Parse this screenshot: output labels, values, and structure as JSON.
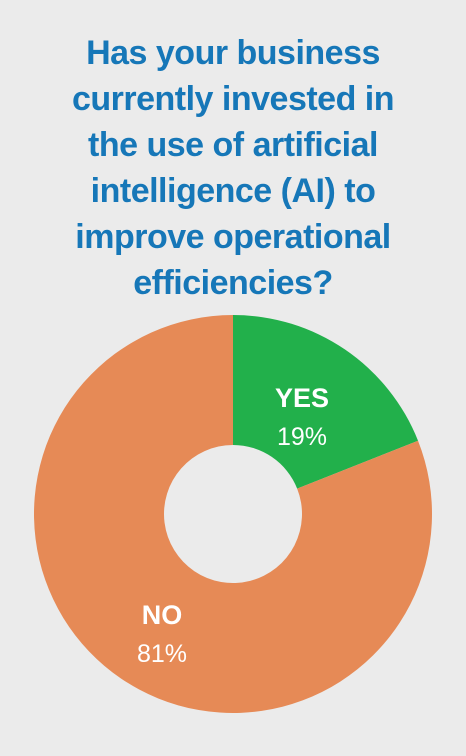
{
  "title_lines": [
    "Has your business",
    "currently invested in",
    "the use of artificial",
    "intelligence (AI) to",
    "improve operational",
    "efficiencies?"
  ],
  "chart_data": {
    "type": "pie",
    "title": "Has your business currently invested in the use of artificial intelligence (AI) to improve operational efficiencies?",
    "donut": true,
    "slices": [
      {
        "label": "YES",
        "value": 19,
        "value_label": "19%",
        "color": "#22b04b"
      },
      {
        "label": "NO",
        "value": 81,
        "value_label": "81%",
        "color": "#e68a56"
      }
    ]
  },
  "colors": {
    "background": "#ebebeb",
    "title": "#1677b8",
    "label_text": "#ffffff"
  }
}
